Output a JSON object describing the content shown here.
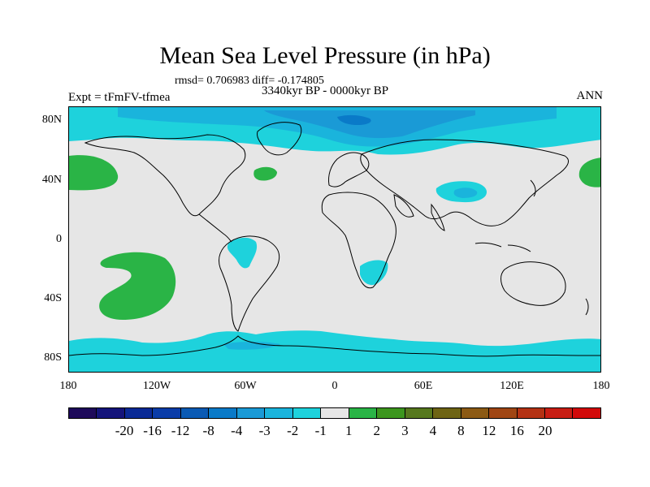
{
  "title": "Mean Sea Level Pressure (in hPa)",
  "subtitle_stats": "rmsd= 0.706983 diff= -0.174805",
  "period": "3340kyr BP - 0000kyr BP",
  "experiment": "Expt = tFmFV-tfmea",
  "season": "ANN",
  "y_ticks": [
    "80N",
    "40N",
    "0",
    "40S",
    "80S"
  ],
  "x_ticks": [
    "180",
    "120W",
    "60W",
    "0",
    "60E",
    "120E",
    "180"
  ],
  "colorbar": {
    "colors": [
      "#1e0a5a",
      "#14147a",
      "#0a2a96",
      "#0a3ca8",
      "#0a5ab4",
      "#0a7ac8",
      "#1a9ad6",
      "#1ab4dc",
      "#1ed2dc",
      "#e6e6e6",
      "#2ab446",
      "#3c961e",
      "#56781e",
      "#6e6414",
      "#8c5a14",
      "#a04614",
      "#b43214",
      "#c81e14",
      "#d20a0a"
    ],
    "labels": [
      "-20",
      "-16",
      "-12",
      "-8",
      "-4",
      "-3",
      "-2",
      "-1",
      "1",
      "2",
      "3",
      "4",
      "8",
      "12",
      "16",
      "20"
    ]
  },
  "field_colors": {
    "neutral": "#e6e6e6",
    "neg1": "#1ed2dc",
    "neg2": "#1ab4dc",
    "neg3": "#1a9ad6",
    "neg4": "#0a7ac8",
    "pos1": "#2ab446"
  }
}
